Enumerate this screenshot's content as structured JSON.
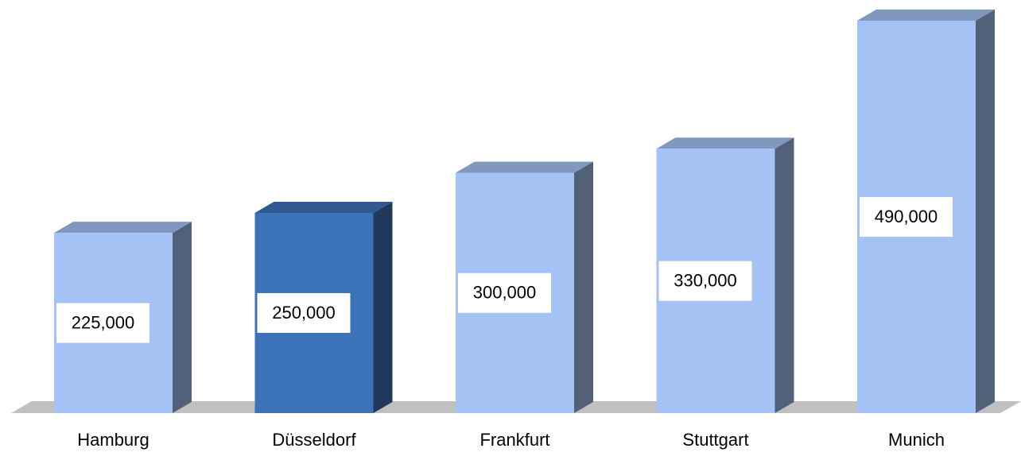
{
  "chart_data": {
    "type": "bar3d",
    "categories": [
      "Hamburg",
      "Düsseldorf",
      "Frankfurt",
      "Stuttgart",
      "Munich"
    ],
    "values": [
      225000,
      250000,
      300000,
      330000,
      490000
    ],
    "value_labels": [
      "225,000",
      "250,000",
      "300,000",
      "330,000",
      "490,000"
    ],
    "colors": [
      "#a4c2f4",
      "#3c72b8",
      "#a4c2f4",
      "#a4c2f4",
      "#a4c2f4"
    ]
  }
}
